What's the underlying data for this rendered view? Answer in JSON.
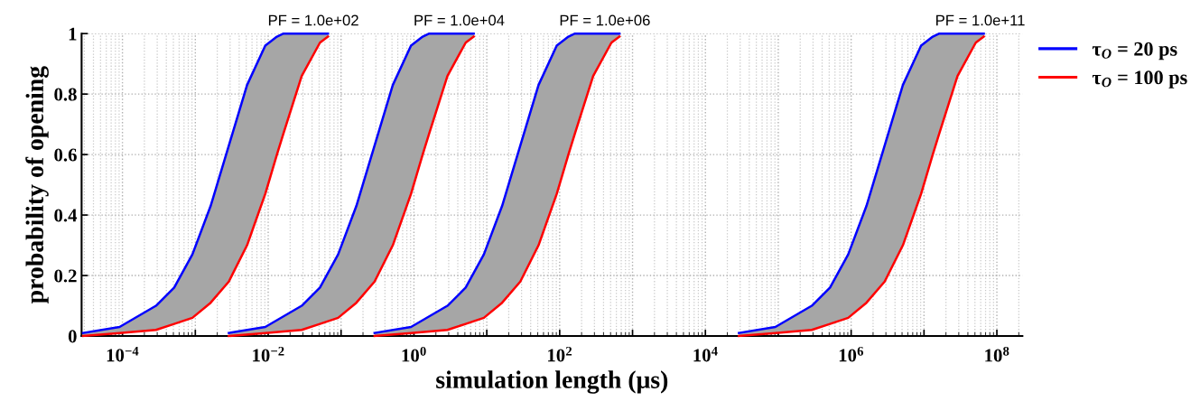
{
  "chart_data": {
    "type": "line",
    "xlabel": "simulation length (μs)",
    "ylabel": "probability of opening",
    "log": "x",
    "xlim": [
      2.75e-05,
      224000000.0
    ],
    "ylim": [
      0,
      1
    ],
    "xticks": [
      {
        "value": 0.0001,
        "label": "10$^{−4}$"
      },
      {
        "value": 0.001,
        "label": null
      },
      {
        "value": 0.01,
        "label": "10$^{−2}$"
      },
      {
        "value": 0.1,
        "label": null
      },
      {
        "value": 1,
        "label": "10$^{0}$"
      },
      {
        "value": 10,
        "label": null
      },
      {
        "value": 100,
        "label": "10$^{2}$"
      },
      {
        "value": 1000,
        "label": null
      },
      {
        "value": 10000,
        "label": "10$^{4}$"
      },
      {
        "value": 100000,
        "label": null
      },
      {
        "value": 1000000,
        "label": "10$^{6}$"
      },
      {
        "value": 10000000,
        "label": null
      },
      {
        "value": 100000000,
        "label": "10$^{8}$"
      }
    ],
    "yticks": [
      0,
      0.2,
      0.4,
      0.6,
      0.8,
      1
    ],
    "grid": true,
    "legend": "top right",
    "line_style": "solid",
    "marker": "none",
    "series": [
      {
        "name": "τ$_{O}$ = 20 ps",
        "color": "#0000ff",
        "x": [
          2.884e-05,
          9.12e-05,
          0.0002884,
          0.000513,
          0.000912,
          0.001622,
          0.002884,
          0.00513,
          0.00912,
          0.01318,
          0.01622,
          0.02884,
          0.0513,
          0.0661
        ],
        "values": [
          0.01,
          0.03,
          0.1,
          0.16,
          0.27,
          0.43,
          0.63,
          0.83,
          0.96,
          0.99,
          1,
          1,
          1,
          1
        ],
        "lower": [
          0,
          0.01,
          0.02,
          0.04,
          0.06,
          0.11,
          0.18,
          0.3,
          0.47,
          0.6,
          0.67,
          0.86,
          0.97,
          0.99
        ],
        "upper": [
          0.01,
          0.03,
          0.1,
          0.16,
          0.27,
          0.43,
          0.63,
          0.83,
          0.96,
          0.99,
          1,
          1,
          1,
          1
        ]
      },
      {
        "name": "τ$_{O}$ = 100 ps",
        "color": "#ff0000",
        "x": [
          2.884e-05,
          9.12e-05,
          0.0002884,
          0.000513,
          0.000912,
          0.001622,
          0.002884,
          0.00513,
          0.00912,
          0.01318,
          0.01622,
          0.02884,
          0.0513,
          0.0661
        ],
        "values": [
          0,
          0.01,
          0.02,
          0.04,
          0.06,
          0.11,
          0.18,
          0.3,
          0.47,
          0.6,
          0.67,
          0.86,
          0.97,
          0.99
        ]
      },
      {
        "color": "#0000ff",
        "x": [
          0.002884,
          0.00912,
          0.02884,
          0.0513,
          0.0912,
          0.1622,
          0.2884,
          0.513,
          0.912,
          1.318,
          1.622,
          2.884,
          5.13,
          6.61
        ],
        "values": [
          0.01,
          0.03,
          0.1,
          0.16,
          0.27,
          0.43,
          0.63,
          0.83,
          0.96,
          0.99,
          1,
          1,
          1,
          1
        ],
        "lower": [
          0,
          0.01,
          0.02,
          0.04,
          0.06,
          0.11,
          0.18,
          0.3,
          0.47,
          0.6,
          0.67,
          0.86,
          0.97,
          0.99
        ],
        "upper": [
          0.01,
          0.03,
          0.1,
          0.16,
          0.27,
          0.43,
          0.63,
          0.83,
          0.96,
          0.99,
          1,
          1,
          1,
          1
        ]
      },
      {
        "color": "#ff0000",
        "x": [
          0.002884,
          0.00912,
          0.02884,
          0.0513,
          0.0912,
          0.1622,
          0.2884,
          0.513,
          0.912,
          1.318,
          1.622,
          2.884,
          5.13,
          6.61
        ],
        "values": [
          0,
          0.01,
          0.02,
          0.04,
          0.06,
          0.11,
          0.18,
          0.3,
          0.47,
          0.6,
          0.67,
          0.86,
          0.97,
          0.99
        ]
      },
      {
        "color": "#0000ff",
        "x": [
          0.2884,
          0.912,
          2.884,
          5.13,
          9.12,
          16.22,
          28.84,
          51.3,
          91.2,
          131.8,
          162.2,
          288.4,
          513,
          661
        ],
        "values": [
          0.01,
          0.03,
          0.1,
          0.16,
          0.27,
          0.43,
          0.63,
          0.83,
          0.96,
          0.99,
          1,
          1,
          1,
          1
        ],
        "lower": [
          0,
          0.01,
          0.02,
          0.04,
          0.06,
          0.11,
          0.18,
          0.3,
          0.47,
          0.6,
          0.67,
          0.86,
          0.97,
          0.99
        ],
        "upper": [
          0.01,
          0.03,
          0.1,
          0.16,
          0.27,
          0.43,
          0.63,
          0.83,
          0.96,
          0.99,
          1,
          1,
          1,
          1
        ]
      },
      {
        "color": "#ff0000",
        "x": [
          0.2884,
          0.912,
          2.884,
          5.13,
          9.12,
          16.22,
          28.84,
          51.3,
          91.2,
          131.8,
          162.2,
          288.4,
          513,
          661
        ],
        "values": [
          0,
          0.01,
          0.02,
          0.04,
          0.06,
          0.11,
          0.18,
          0.3,
          0.47,
          0.6,
          0.67,
          0.86,
          0.97,
          0.99
        ]
      },
      {
        "color": "#0000ff",
        "x": [
          28840.0,
          91200.0,
          288400.0,
          513000.0,
          912000.0,
          1622000.0,
          2884000.0,
          5130000.0,
          9120000.0,
          13180000.0,
          16220000.0,
          28840000.0,
          51300000.0,
          66100000.0
        ],
        "values": [
          0.01,
          0.03,
          0.1,
          0.16,
          0.27,
          0.43,
          0.63,
          0.83,
          0.96,
          0.99,
          1,
          1,
          1,
          1
        ],
        "lower": [
          0,
          0.01,
          0.02,
          0.04,
          0.06,
          0.11,
          0.18,
          0.3,
          0.47,
          0.6,
          0.67,
          0.86,
          0.97,
          0.99
        ],
        "upper": [
          0.01,
          0.03,
          0.1,
          0.16,
          0.27,
          0.43,
          0.63,
          0.83,
          0.96,
          0.99,
          1,
          1,
          1,
          1
        ]
      },
      {
        "color": "#ff0000",
        "x": [
          28840.0,
          91200.0,
          288400.0,
          513000.0,
          912000.0,
          1622000.0,
          2884000.0,
          5130000.0,
          9120000.0,
          13180000.0,
          16220000.0,
          28840000.0,
          51300000.0,
          66100000.0
        ],
        "values": [
          0,
          0.01,
          0.02,
          0.04,
          0.06,
          0.11,
          0.18,
          0.3,
          0.47,
          0.6,
          0.67,
          0.86,
          0.97,
          0.99
        ]
      }
    ],
    "annotations": [
      {
        "text": "PF = 1.0e+02",
        "x": 0.0417,
        "y": 1
      },
      {
        "text": "PF = 1.0e+04",
        "x": 4.17,
        "y": 1
      },
      {
        "text": "PF = 1.0e+06",
        "x": 417,
        "y": 1
      },
      {
        "text": "PF = 1.0e+11",
        "x": 59000000.0,
        "y": 1
      }
    ]
  }
}
